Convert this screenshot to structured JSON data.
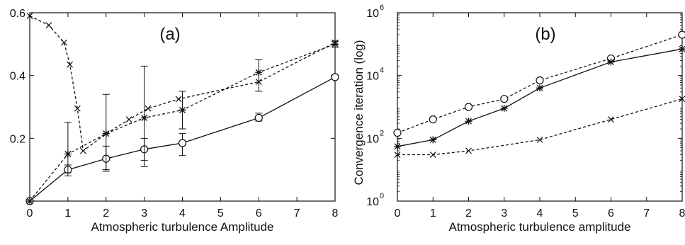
{
  "chart_data": [
    {
      "type": "line",
      "panel_label": "(a)",
      "xlabel": "Atmospheric turbulence Amplitude",
      "ylabel": "",
      "x_ticks": [
        "0",
        "1",
        "2",
        "3",
        "4",
        "5",
        "6",
        "7",
        "8"
      ],
      "y_ticks": [
        "0.2",
        "0.4",
        "0.6"
      ],
      "y_tick_values": [
        0.2,
        0.4,
        0.6
      ],
      "xlim": [
        0,
        8
      ],
      "ylim": [
        0,
        0.6
      ],
      "grid": false,
      "series": [
        {
          "marker": "circle",
          "linestyle": "solid",
          "x": [
            0,
            1,
            2,
            3,
            4,
            6,
            8
          ],
          "y": [
            0,
            0.1,
            0.135,
            0.165,
            0.185,
            0.265,
            0.395
          ],
          "yerr_low": [
            0,
            0.08,
            0.095,
            0.13,
            0.145,
            0.255,
            0.395
          ],
          "yerr_high": [
            0,
            0.115,
            0.175,
            0.2,
            0.215,
            0.28,
            0.395
          ]
        },
        {
          "marker": "star",
          "linestyle": "dashed",
          "x": [
            0,
            1,
            2,
            3,
            4,
            6,
            8
          ],
          "y": [
            0,
            0.15,
            0.215,
            0.265,
            0.29,
            0.41,
            0.5
          ],
          "yerr_low": [
            0,
            0.09,
            0.1,
            0.11,
            0.23,
            0.35,
            0.49
          ],
          "yerr_high": [
            0,
            0.25,
            0.34,
            0.43,
            0.35,
            0.45,
            0.51
          ]
        },
        {
          "marker": "x",
          "linestyle": "dashed",
          "x": [
            0,
            0.5,
            0.9,
            1.05,
            1.25,
            1.4,
            2.0,
            2.6,
            3.1,
            3.9,
            6.0,
            8.0
          ],
          "y": [
            0.59,
            0.56,
            0.505,
            0.435,
            0.295,
            0.16,
            0.215,
            0.26,
            0.295,
            0.325,
            0.38,
            0.505
          ]
        }
      ]
    },
    {
      "type": "line",
      "panel_label": "(b)",
      "xlabel": "Atmospheric turbulence amplitude",
      "ylabel": "Convergence iteration (log)",
      "y_scale": "log",
      "x_ticks": [
        "0",
        "1",
        "2",
        "3",
        "4",
        "5",
        "6",
        "7",
        "8"
      ],
      "y_tick_values": [
        1,
        100,
        10000,
        1000000
      ],
      "y_tick_exponents": [
        "0",
        "2",
        "4",
        "6"
      ],
      "y_tick_base": "10",
      "xlim": [
        0,
        8
      ],
      "ylim": [
        1,
        1000000
      ],
      "grid": false,
      "series": [
        {
          "marker": "circle",
          "linestyle": "dashed",
          "x": [
            0,
            1,
            2,
            3,
            4,
            6,
            8
          ],
          "y": [
            150,
            400,
            1000,
            1800,
            7000,
            35000,
            200000
          ]
        },
        {
          "marker": "star",
          "linestyle": "solid",
          "x": [
            0,
            1,
            2,
            3,
            4,
            6,
            8
          ],
          "y": [
            55,
            90,
            350,
            900,
            4000,
            27000,
            70000
          ]
        },
        {
          "marker": "x",
          "linestyle": "dashed",
          "x": [
            0,
            1,
            2,
            4,
            6,
            8
          ],
          "y": [
            30,
            30,
            40,
            90,
            400,
            1800
          ]
        }
      ]
    }
  ]
}
